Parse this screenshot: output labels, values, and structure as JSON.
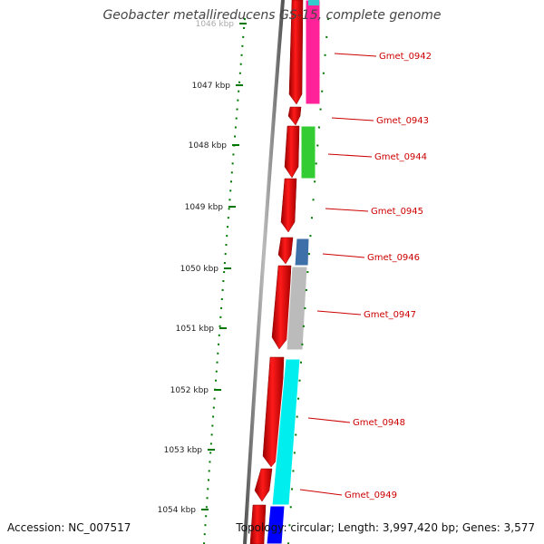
{
  "title": "Geobacter metallireducens GS-15, complete genome",
  "accession_text": "Accession: NC_007517",
  "topology_text": "Topology: circular; Length: 3,997,420 bp; Genes: 3,577",
  "ruler": {
    "ticks": [
      {
        "label": "1046 kbp",
        "faded": true
      },
      {
        "label": "1047 kbp"
      },
      {
        "label": "1048 kbp"
      },
      {
        "label": "1049 kbp"
      },
      {
        "label": "1050 kbp"
      },
      {
        "label": "1051 kbp"
      },
      {
        "label": "1052 kbp"
      },
      {
        "label": "1053 kbp"
      },
      {
        "label": "1054 kbp"
      }
    ]
  },
  "genes": [
    {
      "label": "Gmet_0942",
      "strand_color": "#ff2299"
    },
    {
      "label": "Gmet_0943",
      "strand_color": ""
    },
    {
      "label": "Gmet_0944",
      "strand_color": "#33cc33"
    },
    {
      "label": "Gmet_0945",
      "strand_color": ""
    },
    {
      "label": "Gmet_0946",
      "strand_color": "#3d6fa8"
    },
    {
      "label": "Gmet_0947",
      "strand_color": "#bbbbbb"
    },
    {
      "label": "Gmet_0948",
      "strand_color": "#00eeee"
    },
    {
      "label": "Gmet_0949",
      "strand_color": "#00eeee"
    }
  ],
  "colors": {
    "cds_forward": "#ff0000",
    "backbone": "#777777",
    "ruler": "#007700",
    "callout": "#cc0000",
    "bottom_gene": "#0000ff"
  }
}
